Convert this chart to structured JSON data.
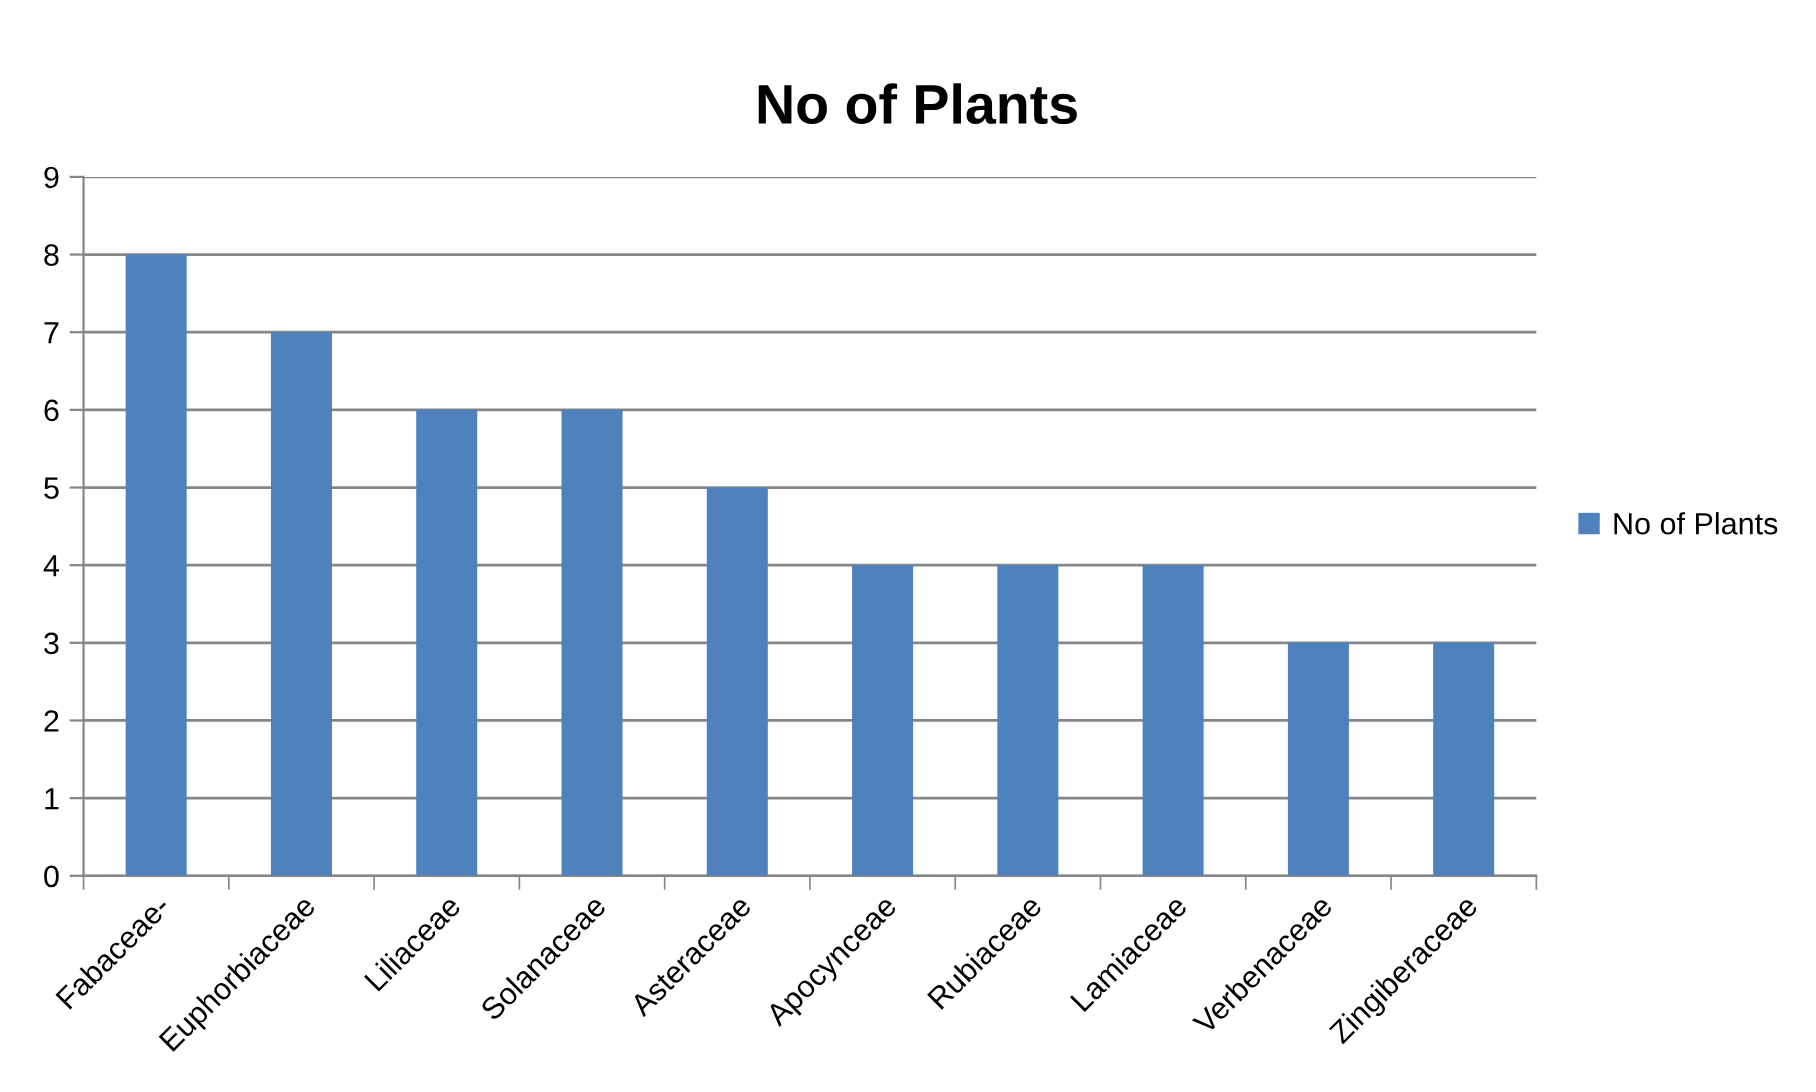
{
  "chart_data": {
    "type": "bar",
    "title": "No of Plants",
    "categories": [
      "Fabaceae-",
      "Euphorbiaceae",
      "Liliaceae",
      "Solanaceae",
      "Asteraceae",
      "Apocynceae",
      "Rubiaceae",
      "Lamiaceae",
      "Verbenaceae",
      "Zingiberaceae"
    ],
    "series": [
      {
        "name": "No of Plants",
        "color": "#4f81bd",
        "values": [
          8,
          7,
          6,
          6,
          5,
          4,
          4,
          4,
          3,
          3
        ]
      }
    ],
    "ylim": [
      0,
      9
    ],
    "yticks": [
      0,
      1,
      2,
      3,
      4,
      5,
      6,
      7,
      8,
      9
    ],
    "grid": "y",
    "legend": "right"
  }
}
